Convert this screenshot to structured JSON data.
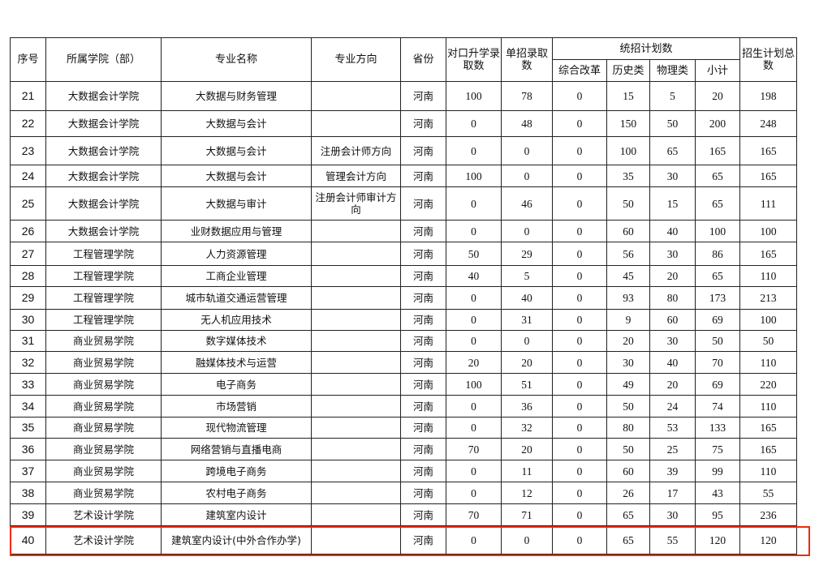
{
  "headers": {
    "seq": "序号",
    "college": "所属学院（部）",
    "major": "专业名称",
    "direction": "专业方向",
    "province": "省份",
    "duikou": "对口升学录取数",
    "danzhao": "单招录取数",
    "tongzhao": "统招计划数",
    "zonghe": "综合改革",
    "lishi": "历史类",
    "wuli": "物理类",
    "xiaoji": "小计",
    "total": "招生计划总数"
  },
  "highlight_color": "#f02a0a",
  "rows": [
    {
      "seq": "21",
      "college": "大数据会计学院",
      "major": "大数据与财务管理",
      "direction": "",
      "province": "河南",
      "duikou": "100",
      "danzhao": "78",
      "zonghe": "0",
      "lishi": "15",
      "wuli": "5",
      "xiaoji": "20",
      "total": "198"
    },
    {
      "seq": "22",
      "college": "大数据会计学院",
      "major": "大数据与会计",
      "direction": "",
      "province": "河南",
      "duikou": "0",
      "danzhao": "48",
      "zonghe": "0",
      "lishi": "150",
      "wuli": "50",
      "xiaoji": "200",
      "total": "248"
    },
    {
      "seq": "23",
      "college": "大数据会计学院",
      "major": "大数据与会计",
      "direction": "注册会计师方向",
      "province": "河南",
      "duikou": "0",
      "danzhao": "0",
      "zonghe": "0",
      "lishi": "100",
      "wuli": "65",
      "xiaoji": "165",
      "total": "165"
    },
    {
      "seq": "24",
      "college": "大数据会计学院",
      "major": "大数据与会计",
      "direction": "管理会计方向",
      "province": "河南",
      "duikou": "100",
      "danzhao": "0",
      "zonghe": "0",
      "lishi": "35",
      "wuli": "30",
      "xiaoji": "65",
      "total": "165"
    },
    {
      "seq": "25",
      "college": "大数据会计学院",
      "major": "大数据与审计",
      "direction": "注册会计师审计方向",
      "province": "河南",
      "duikou": "0",
      "danzhao": "46",
      "zonghe": "0",
      "lishi": "50",
      "wuli": "15",
      "xiaoji": "65",
      "total": "111"
    },
    {
      "seq": "26",
      "college": "大数据会计学院",
      "major": "业财数据应用与管理",
      "direction": "",
      "province": "河南",
      "duikou": "0",
      "danzhao": "0",
      "zonghe": "0",
      "lishi": "60",
      "wuli": "40",
      "xiaoji": "100",
      "total": "100"
    },
    {
      "seq": "27",
      "college": "工程管理学院",
      "major": "人力资源管理",
      "direction": "",
      "province": "河南",
      "duikou": "50",
      "danzhao": "29",
      "zonghe": "0",
      "lishi": "56",
      "wuli": "30",
      "xiaoji": "86",
      "total": "165"
    },
    {
      "seq": "28",
      "college": "工程管理学院",
      "major": "工商企业管理",
      "direction": "",
      "province": "河南",
      "duikou": "40",
      "danzhao": "5",
      "zonghe": "0",
      "lishi": "45",
      "wuli": "20",
      "xiaoji": "65",
      "total": "110"
    },
    {
      "seq": "29",
      "college": "工程管理学院",
      "major": "城市轨道交通运营管理",
      "direction": "",
      "province": "河南",
      "duikou": "0",
      "danzhao": "40",
      "zonghe": "0",
      "lishi": "93",
      "wuli": "80",
      "xiaoji": "173",
      "total": "213"
    },
    {
      "seq": "30",
      "college": "工程管理学院",
      "major": "无人机应用技术",
      "direction": "",
      "province": "河南",
      "duikou": "0",
      "danzhao": "31",
      "zonghe": "0",
      "lishi": "9",
      "wuli": "60",
      "xiaoji": "69",
      "total": "100"
    },
    {
      "seq": "31",
      "college": "商业贸易学院",
      "major": "数字媒体技术",
      "direction": "",
      "province": "河南",
      "duikou": "0",
      "danzhao": "0",
      "zonghe": "0",
      "lishi": "20",
      "wuli": "30",
      "xiaoji": "50",
      "total": "50"
    },
    {
      "seq": "32",
      "college": "商业贸易学院",
      "major": "融媒体技术与运营",
      "direction": "",
      "province": "河南",
      "duikou": "20",
      "danzhao": "20",
      "zonghe": "0",
      "lishi": "30",
      "wuli": "40",
      "xiaoji": "70",
      "total": "110"
    },
    {
      "seq": "33",
      "college": "商业贸易学院",
      "major": "电子商务",
      "direction": "",
      "province": "河南",
      "duikou": "100",
      "danzhao": "51",
      "zonghe": "0",
      "lishi": "49",
      "wuli": "20",
      "xiaoji": "69",
      "total": "220"
    },
    {
      "seq": "34",
      "college": "商业贸易学院",
      "major": "市场营销",
      "direction": "",
      "province": "河南",
      "duikou": "0",
      "danzhao": "36",
      "zonghe": "0",
      "lishi": "50",
      "wuli": "24",
      "xiaoji": "74",
      "total": "110"
    },
    {
      "seq": "35",
      "college": "商业贸易学院",
      "major": "现代物流管理",
      "direction": "",
      "province": "河南",
      "duikou": "0",
      "danzhao": "32",
      "zonghe": "0",
      "lishi": "80",
      "wuli": "53",
      "xiaoji": "133",
      "total": "165"
    },
    {
      "seq": "36",
      "college": "商业贸易学院",
      "major": "网络营销与直播电商",
      "direction": "",
      "province": "河南",
      "duikou": "70",
      "danzhao": "20",
      "zonghe": "0",
      "lishi": "50",
      "wuli": "25",
      "xiaoji": "75",
      "total": "165"
    },
    {
      "seq": "37",
      "college": "商业贸易学院",
      "major": "跨境电子商务",
      "direction": "",
      "province": "河南",
      "duikou": "0",
      "danzhao": "11",
      "zonghe": "0",
      "lishi": "60",
      "wuli": "39",
      "xiaoji": "99",
      "total": "110"
    },
    {
      "seq": "38",
      "college": "商业贸易学院",
      "major": "农村电子商务",
      "direction": "",
      "province": "河南",
      "duikou": "0",
      "danzhao": "12",
      "zonghe": "0",
      "lishi": "26",
      "wuli": "17",
      "xiaoji": "43",
      "total": "55"
    },
    {
      "seq": "39",
      "college": "艺术设计学院",
      "major": "建筑室内设计",
      "direction": "",
      "province": "河南",
      "duikou": "70",
      "danzhao": "71",
      "zonghe": "0",
      "lishi": "65",
      "wuli": "30",
      "xiaoji": "95",
      "total": "236"
    },
    {
      "seq": "40",
      "college": "艺术设计学院",
      "major": "建筑室内设计(中外合作办学)",
      "direction": "",
      "province": "河南",
      "duikou": "0",
      "danzhao": "0",
      "zonghe": "0",
      "lishi": "65",
      "wuli": "55",
      "xiaoji": "120",
      "total": "120"
    }
  ]
}
